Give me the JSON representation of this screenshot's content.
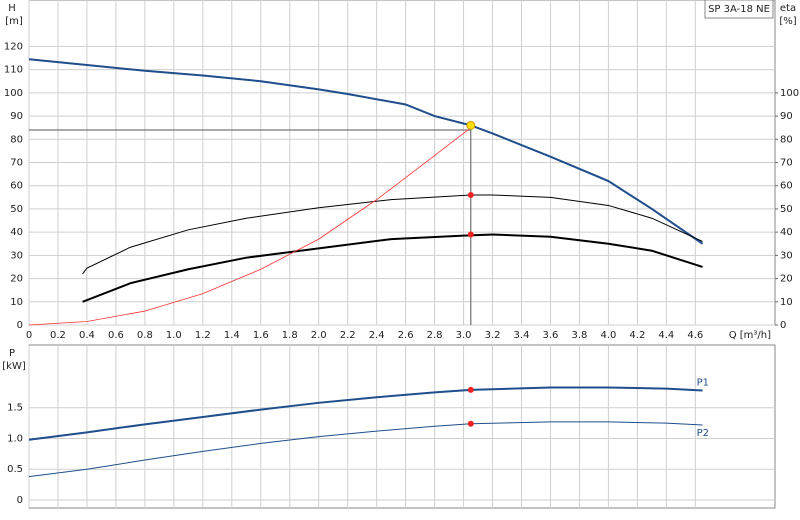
{
  "chart_data": [
    {
      "type": "line",
      "title": "SP 3A-18 NE",
      "y_label": "H",
      "y_unit": "[m]",
      "y2_label": "eta",
      "y2_unit": "[%]",
      "x_label": "Q [m³/h]",
      "xlim": [
        0,
        5.15
      ],
      "ylim": [
        0,
        140
      ],
      "y2lim": [
        0,
        140
      ],
      "grid": true,
      "xticks": [
        0,
        0.2,
        0.4,
        0.6,
        0.8,
        {
          "value": 1,
          "label": "1.0"
        },
        1.2,
        1.4,
        1.6,
        1.8,
        {
          "value": 2,
          "label": "2.0"
        },
        2.2,
        2.4,
        2.6,
        2.8,
        {
          "value": 3,
          "label": "3.0"
        },
        3.2,
        3.4,
        3.6,
        3.8,
        {
          "value": 4,
          "label": "4.0"
        },
        4.2,
        4.4,
        4.6
      ],
      "yticks": [
        0,
        10,
        20,
        30,
        40,
        50,
        60,
        70,
        80,
        90,
        100,
        110,
        120
      ],
      "y2ticks": [
        0,
        10,
        20,
        30,
        40,
        50,
        60,
        70,
        80,
        90,
        100
      ],
      "series": [
        {
          "color": "#1f4e8c",
          "line_width": 2,
          "x": [
            0,
            0.4,
            0.8,
            1.2,
            1.6,
            2.0,
            2.2,
            2.6,
            2.8,
            3.05,
            3.2,
            3.6,
            4.0,
            4.3,
            4.65
          ],
          "values": [
            114.5,
            112,
            109.5,
            107.5,
            105,
            101.5,
            99.5,
            95,
            90,
            86,
            82.5,
            72.5,
            62,
            50,
            35
          ]
        },
        {
          "color": "#000000",
          "line_width": 2,
          "axis": "y2",
          "x": [
            0.37,
            0.7,
            1.1,
            1.5,
            2.0,
            2.5,
            3.0,
            3.2,
            3.6,
            4.0,
            4.3,
            4.65
          ],
          "values": [
            10,
            18,
            24,
            29,
            33,
            37,
            38.5,
            39,
            38,
            35,
            32,
            25
          ]
        },
        {
          "color": "#000000",
          "line_width": 1,
          "axis": "y2",
          "x": [
            0.37,
            0.4,
            0.7,
            1.1,
            1.5,
            2.0,
            2.5,
            3.05,
            3.2,
            3.6,
            4.0,
            4.3,
            4.65
          ],
          "values": [
            22,
            24.5,
            33.5,
            41,
            46,
            50.5,
            54,
            56,
            56,
            55,
            51.5,
            46,
            36
          ]
        },
        {
          "color": "#ff3333",
          "line_width": 0.8,
          "x": [
            0,
            0.4,
            0.8,
            1.2,
            1.6,
            2.0,
            2.4,
            2.8,
            3.05
          ],
          "values": [
            0,
            1.5,
            6,
            13.5,
            24,
            37,
            54,
            73,
            85
          ]
        }
      ],
      "markers": [
        {
          "color": "#ffdd00",
          "x": 3.05,
          "y": 86
        },
        {
          "color": "#ee2222",
          "x": 3.05,
          "y": 56
        },
        {
          "color": "#ee2222",
          "x": 3.05,
          "y": 39
        }
      ],
      "operating_point": {
        "x": 3.05,
        "y": 84
      }
    },
    {
      "type": "line",
      "y_label": "P",
      "y_unit": "[kW]",
      "xlim": [
        0,
        5.15
      ],
      "ylim": [
        -0.13,
        2.52
      ],
      "grid": true,
      "xticks": [
        0,
        0.2,
        0.4,
        0.6,
        0.8,
        1,
        1.2,
        1.4,
        1.6,
        1.8,
        2,
        2.2,
        2.4,
        2.6,
        2.8,
        3,
        3.2,
        3.4,
        3.6,
        3.8,
        4,
        4.2,
        4.4,
        4.6
      ],
      "yticks": [
        0,
        0.5,
        {
          "value": 1,
          "label": "1.0"
        },
        1.5
      ],
      "series": [
        {
          "name": "P1",
          "color": "#1f4e8c",
          "line_width": 2,
          "x": [
            0,
            0.4,
            0.8,
            1.2,
            1.6,
            2.0,
            2.4,
            2.8,
            3.05,
            3.6,
            4.0,
            4.4,
            4.65
          ],
          "values": [
            0.98,
            1.1,
            1.23,
            1.35,
            1.47,
            1.58,
            1.67,
            1.75,
            1.79,
            1.83,
            1.83,
            1.81,
            1.78
          ]
        },
        {
          "name": "P2",
          "color": "#1f4e8c",
          "line_width": 1,
          "x": [
            0,
            0.4,
            0.8,
            1.2,
            1.6,
            2.0,
            2.4,
            2.8,
            3.05,
            3.6,
            4.0,
            4.4,
            4.65
          ],
          "values": [
            0.38,
            0.5,
            0.65,
            0.79,
            0.92,
            1.03,
            1.12,
            1.2,
            1.24,
            1.27,
            1.27,
            1.25,
            1.22
          ]
        }
      ],
      "markers": [
        {
          "color": "#ee2222",
          "x": 3.05,
          "y": 1.79
        },
        {
          "color": "#ee2222",
          "x": 3.05,
          "y": 1.24
        }
      ]
    }
  ]
}
